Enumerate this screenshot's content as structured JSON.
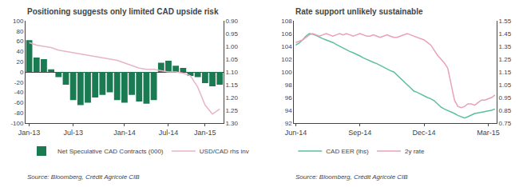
{
  "chart_data": [
    {
      "type": "bar",
      "title": "Positioning suggests only limited CAD upside risk",
      "categories": [
        "Jan-13",
        null,
        null,
        null,
        null,
        null,
        "Jul-13",
        null,
        null,
        null,
        null,
        null,
        null,
        "Jan-14",
        null,
        null,
        null,
        null,
        null,
        "Jul-14",
        null,
        null,
        null,
        null,
        "Jan-15",
        null,
        null
      ],
      "series": [
        {
          "name": "Net Speculative CAD Contracts (000)",
          "type": "bar",
          "color": "#1a7a52",
          "values": [
            62,
            28,
            25,
            5,
            -10,
            -25,
            -55,
            -65,
            -60,
            -50,
            -45,
            -40,
            -55,
            -60,
            -45,
            -58,
            -62,
            -55,
            18,
            22,
            12,
            8,
            -8,
            -10,
            -22,
            -28,
            -25
          ]
        },
        {
          "name": "USD/CAD rhs inv",
          "type": "line",
          "color": "#e8b4c8",
          "axis": "y2",
          "values": [
            0.985,
            0.995,
            1.0,
            1.005,
            1.015,
            1.02,
            1.025,
            1.03,
            1.035,
            1.04,
            1.045,
            1.05,
            1.055,
            1.065,
            1.075,
            1.085,
            1.09,
            1.09,
            1.095,
            1.1,
            1.1,
            1.105,
            1.115,
            1.16,
            1.23,
            1.265,
            1.245
          ]
        }
      ],
      "ylim": [
        -100,
        100
      ],
      "yticks": [
        100,
        80,
        60,
        40,
        20,
        0,
        -20,
        -40,
        -60,
        -80,
        -100
      ],
      "y2lim": [
        1.3,
        0.9
      ],
      "y2ticks": [
        {
          "value": 0.9,
          "label": "0.90"
        },
        0.95,
        {
          "value": 1.0,
          "label": "1.00"
        },
        1.05,
        {
          "value": 1.1,
          "label": "1.10"
        },
        1.15,
        {
          "value": 1.2,
          "label": "1.20"
        },
        1.25,
        {
          "value": 1.3,
          "label": "1.30"
        }
      ],
      "grid": false,
      "legend": "bottom",
      "annotations": [
        "Source: Bloomberg, Crédit Agricole CIB"
      ]
    },
    {
      "type": "line",
      "title": "Rate support unlikely sustainable",
      "categories": [
        "Jun-14",
        null,
        null,
        null,
        null,
        null,
        null,
        null,
        null,
        null,
        null,
        null,
        null,
        null,
        null,
        null,
        null,
        null,
        null,
        "Sep-14",
        null,
        null,
        null,
        null,
        null,
        null,
        null,
        null,
        null,
        null,
        null,
        null,
        null,
        null,
        null,
        null,
        null,
        null,
        "Dec-14",
        null,
        null,
        null,
        null,
        null,
        null,
        null,
        null,
        null,
        null,
        null,
        null,
        null,
        null,
        null,
        null,
        null,
        null,
        "Mar-15",
        null,
        null
      ],
      "series": [
        {
          "name": "CAD EER (lhs)",
          "type": "line",
          "color": "#5bbfa0",
          "values": [
            104.2,
            104.5,
            105.0,
            105.6,
            106.0,
            105.9,
            105.7,
            105.4,
            105.2,
            105.0,
            104.8,
            104.6,
            104.3,
            104.0,
            103.8,
            103.5,
            103.2,
            103.0,
            102.8,
            102.5,
            102.2,
            102.0,
            101.8,
            101.5,
            101.3,
            101.0,
            100.8,
            100.5,
            100.2,
            100.0,
            99.5,
            99.0,
            98.5,
            98.0,
            97.5,
            97.0,
            96.8,
            96.5,
            96.2,
            96.0,
            95.8,
            95.5,
            95.0,
            94.5,
            94.2,
            94.0,
            93.8,
            93.5,
            93.2,
            93.0,
            92.8,
            93.0,
            93.3,
            93.5,
            93.6,
            93.7,
            93.8,
            93.9,
            94.0,
            94.2
          ]
        },
        {
          "name": "2y rate",
          "type": "line",
          "color": "#e8a0bc",
          "axis": "y2",
          "values": [
            1.38,
            1.39,
            1.4,
            1.42,
            1.44,
            1.45,
            1.44,
            1.43,
            1.44,
            1.45,
            1.44,
            1.43,
            1.44,
            1.45,
            1.44,
            1.45,
            1.44,
            1.43,
            1.44,
            1.45,
            1.44,
            1.43,
            1.43,
            1.44,
            1.43,
            1.42,
            1.43,
            1.44,
            1.43,
            1.42,
            1.42,
            1.43,
            1.44,
            1.45,
            1.44,
            1.43,
            1.42,
            1.41,
            1.4,
            1.38,
            1.36,
            1.32,
            1.28,
            1.25,
            1.22,
            1.18,
            1.05,
            0.93,
            0.88,
            0.87,
            0.88,
            0.9,
            0.9,
            0.89,
            0.91,
            0.93,
            0.93,
            0.94,
            0.95,
            0.97
          ]
        }
      ],
      "ylim": [
        92,
        108
      ],
      "yticks": [
        92,
        94,
        96,
        98,
        100,
        102,
        104,
        106,
        108
      ],
      "y2lim": [
        0.75,
        1.55
      ],
      "y2ticks": [
        0.75,
        0.85,
        0.95,
        1.05,
        1.15,
        1.25,
        1.35,
        1.45,
        1.55
      ],
      "grid": false,
      "legend": "bottom",
      "annotations": [
        "Source: Bloomberg, Crédit Agricole CIB"
      ]
    }
  ]
}
